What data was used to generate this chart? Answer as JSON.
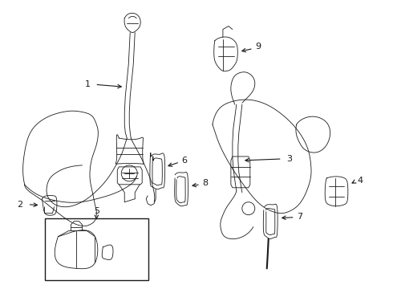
{
  "background_color": "#ffffff",
  "line_color": "#1a1a1a",
  "label_color": "#000000",
  "figure_width": 4.9,
  "figure_height": 3.6,
  "dpi": 100,
  "light_gray": "#cccccc",
  "med_gray": "#aaaaaa"
}
